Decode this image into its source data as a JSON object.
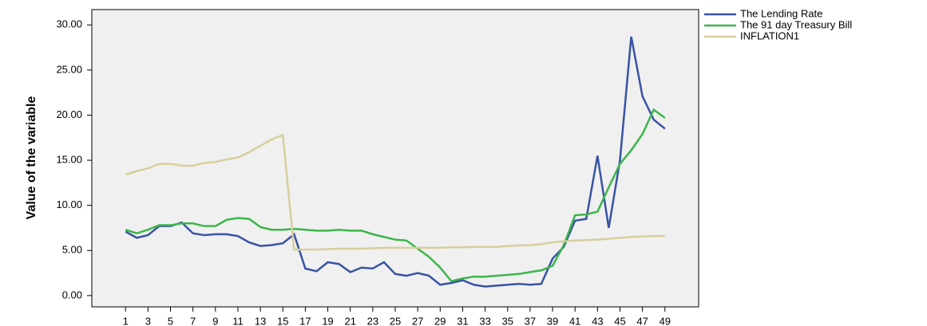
{
  "chart_data": {
    "type": "line",
    "y_label": "Value of the variable",
    "x": [
      1,
      2,
      3,
      4,
      5,
      6,
      7,
      8,
      9,
      10,
      11,
      12,
      13,
      14,
      15,
      16,
      17,
      18,
      19,
      20,
      21,
      22,
      23,
      24,
      25,
      26,
      27,
      28,
      29,
      30,
      31,
      32,
      33,
      34,
      35,
      36,
      37,
      38,
      39,
      40,
      41,
      42,
      43,
      44,
      45,
      46,
      47,
      48,
      49
    ],
    "xlim": [
      -2,
      52
    ],
    "xticks": [
      1,
      3,
      5,
      7,
      9,
      11,
      13,
      15,
      17,
      19,
      21,
      23,
      25,
      27,
      29,
      31,
      33,
      35,
      37,
      39,
      41,
      43,
      45,
      47,
      49
    ],
    "ylim": [
      -1.25,
      31.7
    ],
    "yticks": [
      {
        "value": 0,
        "label": "0.00"
      },
      {
        "value": 5,
        "label": "5.00"
      },
      {
        "value": 10,
        "label": "10.00"
      },
      {
        "value": 15,
        "label": "15.00"
      },
      {
        "value": 20,
        "label": "20.00"
      },
      {
        "value": 25,
        "label": "25.00"
      },
      {
        "value": 30,
        "label": "30.00"
      }
    ],
    "legend": "top-right",
    "series": [
      {
        "name": "The Lending Rate",
        "color": "#3953a4",
        "values": [
          7.1,
          6.4,
          6.7,
          7.7,
          7.7,
          8.1,
          6.9,
          6.7,
          6.8,
          6.8,
          6.6,
          5.9,
          5.5,
          5.6,
          5.8,
          6.8,
          3.0,
          2.7,
          3.7,
          3.5,
          2.6,
          3.1,
          3.0,
          3.7,
          2.4,
          2.2,
          2.5,
          2.2,
          1.2,
          1.4,
          1.7,
          1.2,
          1.0,
          1.1,
          1.2,
          1.3,
          1.2,
          1.3,
          4.1,
          5.4,
          8.3,
          8.5,
          15.5,
          7.5,
          15.0,
          28.7,
          22.1,
          19.5,
          18.5
        ]
      },
      {
        "name": "The 91 day Treasury Bill",
        "color": "#3cb54a",
        "values": [
          7.3,
          6.9,
          7.3,
          7.8,
          7.8,
          8.0,
          8.0,
          7.7,
          7.7,
          8.4,
          8.6,
          8.5,
          7.6,
          7.3,
          7.3,
          7.4,
          7.3,
          7.2,
          7.2,
          7.3,
          7.2,
          7.2,
          6.8,
          6.5,
          6.2,
          6.1,
          5.2,
          4.3,
          3.1,
          1.6,
          1.9,
          2.1,
          2.1,
          2.2,
          2.3,
          2.4,
          2.6,
          2.8,
          3.3,
          5.6,
          8.9,
          9.0,
          9.3,
          12.0,
          14.6,
          16.1,
          17.9,
          20.6,
          19.7
        ]
      },
      {
        "name": "INFLATION1",
        "color": "#d6cf9c",
        "values": [
          13.4,
          13.8,
          14.1,
          14.6,
          14.6,
          14.4,
          14.4,
          14.7,
          14.8,
          15.1,
          15.3,
          15.9,
          16.6,
          17.3,
          17.8,
          5.1,
          5.1,
          5.1,
          5.15,
          5.2,
          5.2,
          5.2,
          5.25,
          5.3,
          5.3,
          5.3,
          5.3,
          5.3,
          5.3,
          5.35,
          5.35,
          5.4,
          5.4,
          5.4,
          5.5,
          5.55,
          5.6,
          5.7,
          5.9,
          6.0,
          6.1,
          6.15,
          6.2,
          6.3,
          6.4,
          6.5,
          6.55,
          6.6,
          6.6
        ]
      }
    ]
  }
}
